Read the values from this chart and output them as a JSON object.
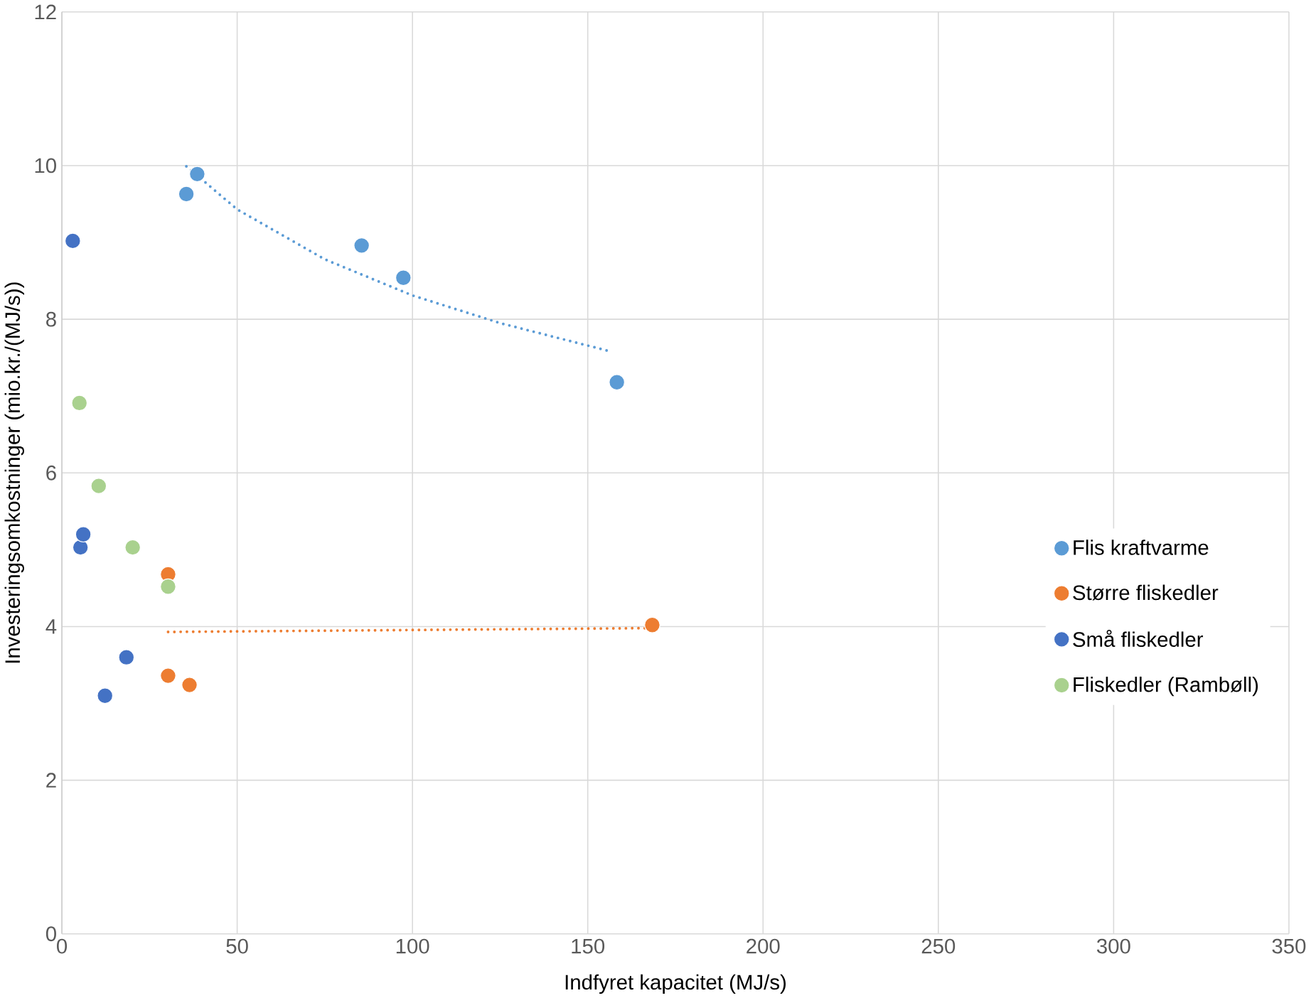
{
  "chart_data": {
    "type": "scatter",
    "xlabel": "Indfyret kapacitet (MJ/s)",
    "ylabel": "Investeringsomkostninger (mio.kr./(MJ/s))",
    "xlim": [
      0,
      350
    ],
    "ylim": [
      0,
      12
    ],
    "xticks": [
      0,
      50,
      100,
      150,
      200,
      250,
      300,
      350
    ],
    "yticks": [
      0,
      2,
      4,
      6,
      8,
      10,
      12
    ],
    "grid": true,
    "legend": "right",
    "series": [
      {
        "name": "Flis kraftvarme",
        "color": "#5b9bd5",
        "marker": "circle",
        "x": [
          35.5,
          38.6,
          85.5,
          97.4,
          158.3
        ],
        "values": [
          9.63,
          9.89,
          8.96,
          8.54,
          7.18
        ]
      },
      {
        "name": "Større fliskedler",
        "color": "#ed7d31",
        "marker": "circle",
        "x": [
          30.3,
          30.3,
          36.4,
          168.4
        ],
        "values": [
          4.68,
          3.36,
          3.24,
          4.02
        ]
      },
      {
        "name": "Små fliskedler",
        "color": "#4472c4",
        "marker": "circle",
        "x": [
          3.1,
          5.3,
          6.1,
          12.3,
          18.4
        ],
        "values": [
          9.02,
          5.03,
          5.2,
          3.1,
          3.6
        ]
      },
      {
        "name": "Fliskedler (Rambøll)",
        "color": "#a9d18e",
        "marker": "circle",
        "x": [
          5.0,
          10.5,
          20.2,
          30.3
        ],
        "values": [
          6.91,
          5.83,
          5.03,
          4.52
        ]
      },
      {
        "type": "line",
        "color": "#5b9bd5",
        "line_style": "dotted",
        "marker": "none",
        "x": [
          35.5,
          50,
          75,
          100,
          125,
          156.6
        ],
        "values": [
          9.99,
          9.43,
          8.78,
          8.31,
          7.95,
          7.58
        ]
      },
      {
        "type": "line",
        "color": "#ed7d31",
        "line_style": "dotted",
        "marker": "none",
        "x": [
          30.3,
          168.4
        ],
        "values": [
          3.93,
          3.98
        ]
      }
    ]
  }
}
